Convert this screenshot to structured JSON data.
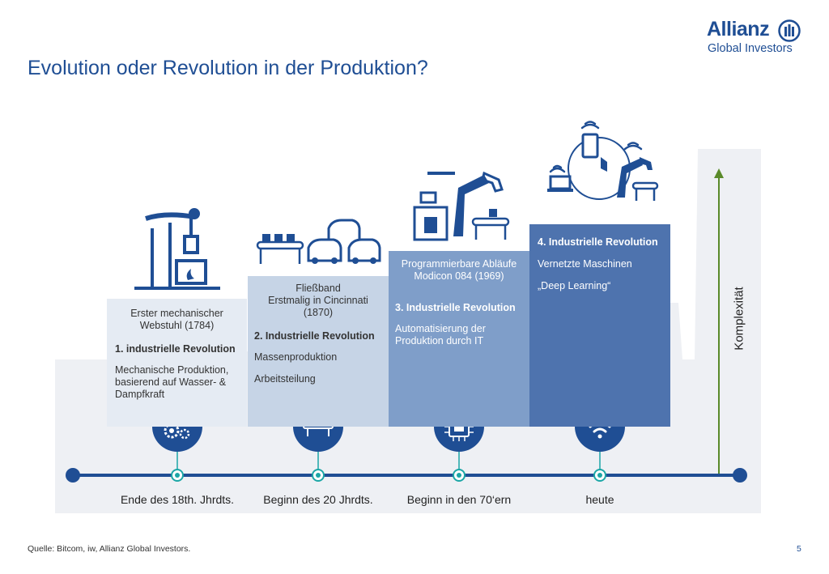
{
  "title": "Evolution oder Revolution in der Produktion?",
  "logo": {
    "name": "Allianz",
    "sub": "Global Investors"
  },
  "stages": [
    {
      "intro": [
        "Erster mechanischer",
        "Webstuhl (1784)"
      ],
      "heading": "1. industrielle Revolution",
      "desc": [
        "Mechanische Produktion, basierend auf Wasser- & Dampfkraft"
      ],
      "icon": "gears-icon",
      "timeline_label": "Ende des 18th. Jhrdts."
    },
    {
      "intro": [
        "Fließband",
        "Erstmalig in Cincinnati",
        "(1870)"
      ],
      "heading": "2. Industrielle Revolution",
      "desc": [
        "Massenproduktion",
        "Arbeitsteilung"
      ],
      "icon": "conveyor-icon",
      "timeline_label": "Beginn des 20 Jhrdts."
    },
    {
      "intro": [
        "Programmierbare Abläufe",
        "Modicon 084 (1969)"
      ],
      "heading": "3. Industrielle Revolution",
      "desc": [
        "Automatisierung der Produktion durch IT"
      ],
      "icon": "chip-icon",
      "timeline_label": "Beginn in den 70‘ern"
    },
    {
      "intro": [],
      "heading": "4. Industrielle Revolution",
      "desc": [
        "Vernetzte Maschinen",
        "„Deep Learning“"
      ],
      "icon": "wifi-icon",
      "timeline_label": "heute"
    }
  ],
  "axis_label": "Komplexität",
  "source": "Quelle: Bitcom, iw, Allianz Global Investors.",
  "page_number": "5",
  "colors": {
    "brand": "#1f4e94",
    "stage1": "#e5ebf3",
    "stage2": "#c6d4e6",
    "stage3": "#7f9ec9",
    "stage4": "#4e73ae",
    "arrow": "#5a8a2a",
    "timeline": "#1f4e94",
    "dot": "#1ba6a6"
  }
}
